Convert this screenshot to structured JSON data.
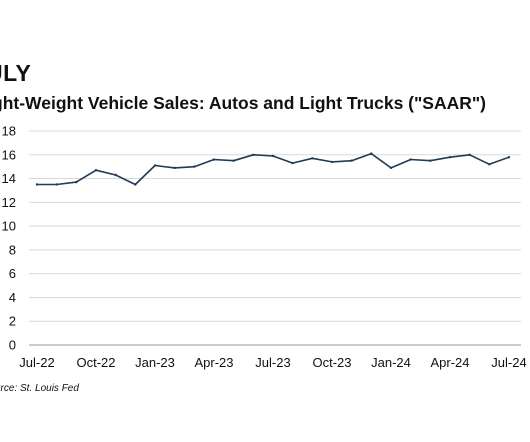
{
  "heading": "ULY",
  "chart_data": {
    "type": "line",
    "title": "ght-Weight Vehicle Sales: Autos and Light Trucks (\"SAAR\")",
    "source": "urce: St. Louis Fed",
    "x": [
      "2022-07",
      "2022-08",
      "2022-09",
      "2022-10",
      "2022-11",
      "2022-12",
      "2023-01",
      "2023-02",
      "2023-03",
      "2023-04",
      "2023-05",
      "2023-06",
      "2023-07",
      "2023-08",
      "2023-09",
      "2023-10",
      "2023-11",
      "2023-12",
      "2024-01",
      "2024-02",
      "2024-03",
      "2024-04",
      "2024-05",
      "2024-06",
      "2024-07"
    ],
    "series": [
      {
        "values": [
          13.5,
          13.5,
          13.7,
          14.7,
          14.3,
          13.5,
          15.1,
          14.9,
          15.0,
          15.6,
          15.5,
          16.0,
          15.9,
          15.3,
          15.7,
          15.4,
          15.5,
          16.1,
          14.9,
          15.6,
          15.5,
          15.8,
          16.0,
          15.2,
          15.8
        ],
        "color": "#1f3b57"
      }
    ],
    "xticks": [
      {
        "label": "Jul-22",
        "at": "2022-07"
      },
      {
        "label": "Oct-22",
        "at": "2022-10"
      },
      {
        "label": "Jan-23",
        "at": "2023-01"
      },
      {
        "label": "Apr-23",
        "at": "2023-04"
      },
      {
        "label": "Jul-23",
        "at": "2023-07"
      },
      {
        "label": "Oct-23",
        "at": "2023-10"
      },
      {
        "label": "Jan-24",
        "at": "2024-01"
      },
      {
        "label": "Apr-24",
        "at": "2024-04"
      },
      {
        "label": "Jul-24",
        "at": "2024-07"
      }
    ],
    "yticks": [
      0,
      2,
      4,
      6,
      8,
      10,
      12,
      14,
      16,
      18
    ],
    "ylim": [
      0,
      18
    ],
    "grid": true
  }
}
